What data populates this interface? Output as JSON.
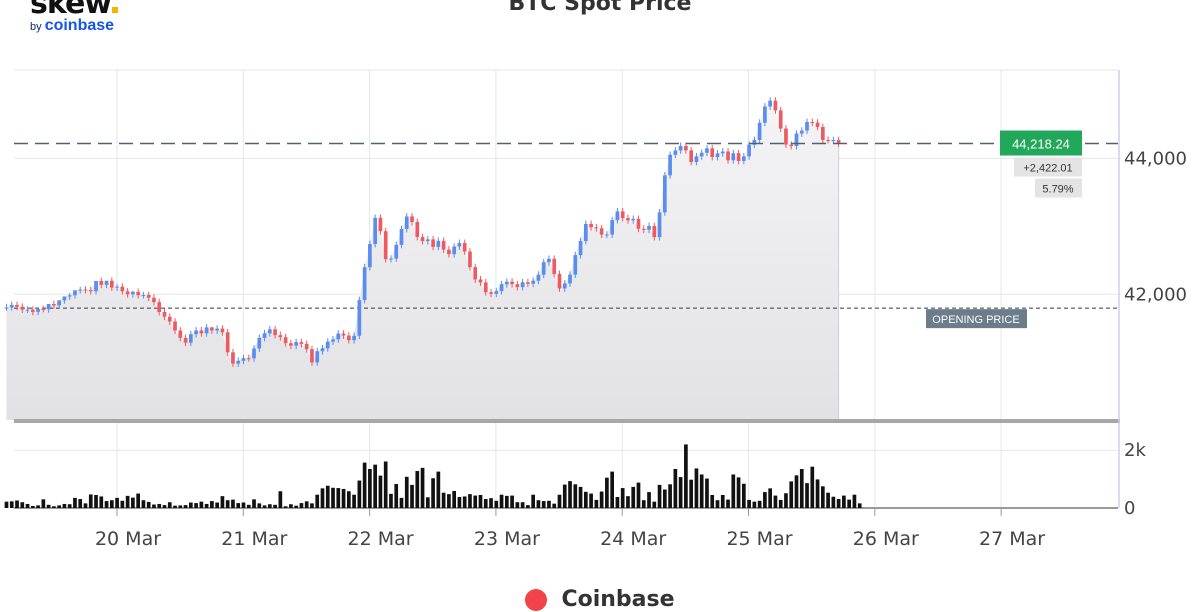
{
  "logo": {
    "word": "skew",
    "sub_prefix": "by",
    "sub_brand": "coinbase"
  },
  "colors": {
    "up": "#5b8def",
    "down": "#ee5a61",
    "last_price_badge": "#22a85a",
    "opening_badge": "#6b7c8a",
    "legend_marker": "#f0434a"
  },
  "chart_data": {
    "type": "candlestick",
    "title": "BTC Spot Price",
    "legend": [
      {
        "name": "Coinbase",
        "color": "#f0434a"
      }
    ],
    "legend_position": "bottom-center",
    "price_axis": {
      "side": "right",
      "ticks": [
        42000,
        44000
      ],
      "tick_labels": [
        "42,000",
        "44,000"
      ],
      "range": [
        40150,
        45300
      ]
    },
    "volume_axis": {
      "side": "right",
      "ticks": [
        0,
        2000
      ],
      "tick_labels": [
        "0",
        "2k"
      ],
      "range": [
        0,
        2700
      ]
    },
    "x_axis": {
      "tick_labels": [
        "20 Mar",
        "21 Mar",
        "22 Mar",
        "23 Mar",
        "24 Mar",
        "25 Mar",
        "26 Mar",
        "27 Mar"
      ],
      "range_days": [
        19.1,
        27.8
      ]
    },
    "grid": true,
    "last_price": {
      "value": 44218.24,
      "label": "44,218.24",
      "change_label": "+2,422.01",
      "change_pct_label": "5.79%"
    },
    "opening_price": {
      "value": 41796,
      "label": "OPENING PRICE"
    },
    "first_candle_time": 19.125,
    "candle_interval_days": 0.0417,
    "opens": [
      41800,
      41806,
      41843,
      41817,
      41774,
      41775,
      41741,
      41784,
      41780,
      41857,
      41836,
      41911,
      41968,
      41985,
      42059,
      42070,
      42063,
      42045,
      42196,
      42139,
      42199,
      42099,
      42112,
      42044,
      42000,
      42036,
      41987,
      41989,
      41949,
      41884,
      41739,
      41670,
      41599,
      41466,
      41359,
      41288,
      41412,
      41468,
      41426,
      41513,
      41468,
      41495,
      41440,
      41146,
      40981,
      41021,
      41060,
      41058,
      41202,
      41358,
      41426,
      41485,
      41399,
      41368,
      41280,
      41245,
      41296,
      41270,
      41192,
      40998,
      41162,
      41205,
      41303,
      41337,
      41422,
      41393,
      41325,
      41390,
      41914,
      42398,
      42739,
      43125,
      42928,
      42516,
      42526,
      42727,
      42960,
      43145,
      43063,
      42843,
      42782,
      42808,
      42698,
      42786,
      42657,
      42591,
      42702,
      42755,
      42629,
      42399,
      42218,
      42174,
      42030,
      42007,
      42046,
      42148,
      42185,
      42149,
      42106,
      42177,
      42155,
      42199,
      42288,
      42472,
      42522,
      42298,
      42086,
      42160,
      42289,
      42576,
      42784,
      43035,
      42986,
      42971,
      42877,
      42879,
      43091,
      43220,
      43121,
      43089,
      43109,
      42964,
      42949,
      43005,
      42841,
      43205,
      43750,
      44052,
      44116,
      44183,
      44118,
      43947,
      44029,
      44082,
      44147,
      44019,
      44073,
      44101,
      43972,
      44076,
      43962,
      44029,
      44201,
      44270,
      44523,
      44763,
      44849,
      44706,
      44438,
      44203,
      44180,
      44365,
      44408,
      44535,
      44527,
      44462,
      44271,
      44269,
      44269
    ],
    "closes": [
      41806,
      41843,
      41817,
      41774,
      41775,
      41741,
      41784,
      41780,
      41857,
      41836,
      41911,
      41968,
      41985,
      42059,
      42070,
      42063,
      42045,
      42196,
      42139,
      42199,
      42099,
      42112,
      42044,
      42000,
      42036,
      41987,
      41989,
      41949,
      41884,
      41739,
      41670,
      41599,
      41466,
      41359,
      41288,
      41412,
      41468,
      41426,
      41513,
      41468,
      41495,
      41440,
      41146,
      40981,
      41021,
      41060,
      41058,
      41202,
      41358,
      41426,
      41485,
      41399,
      41368,
      41280,
      41245,
      41296,
      41270,
      41192,
      40998,
      41162,
      41205,
      41303,
      41337,
      41422,
      41393,
      41325,
      41390,
      41914,
      42398,
      42739,
      43125,
      42928,
      42516,
      42526,
      42727,
      42960,
      43145,
      43063,
      42843,
      42782,
      42808,
      42698,
      42786,
      42657,
      42591,
      42702,
      42755,
      42629,
      42399,
      42218,
      42174,
      42030,
      42007,
      42046,
      42148,
      42185,
      42149,
      42106,
      42177,
      42155,
      42199,
      42288,
      42472,
      42522,
      42298,
      42086,
      42160,
      42289,
      42576,
      42784,
      43035,
      42986,
      42971,
      42877,
      42879,
      43091,
      43220,
      43121,
      43089,
      43109,
      42964,
      42949,
      43005,
      42841,
      43205,
      43750,
      44052,
      44116,
      44183,
      44118,
      43947,
      44029,
      44082,
      44147,
      44019,
      44073,
      44101,
      43972,
      44076,
      43962,
      44029,
      44201,
      44270,
      44523,
      44763,
      44849,
      44706,
      44438,
      44203,
      44180,
      44365,
      44408,
      44535,
      44527,
      44462,
      44271,
      44269,
      44269,
      44218
    ],
    "highs": [
      41860,
      41893,
      41893,
      41867,
      41824,
      41825,
      41791,
      41834,
      41830,
      41907,
      41886,
      41961,
      42018,
      42035,
      42109,
      42120,
      42113,
      42095,
      42246,
      42189,
      42249,
      42149,
      42162,
      42094,
      42050,
      42086,
      42037,
      42039,
      41999,
      41934,
      41789,
      41720,
      41649,
      41516,
      41409,
      41462,
      41518,
      41518,
      41563,
      41518,
      41545,
      41545,
      41490,
      41196,
      41071,
      41110,
      41110,
      41252,
      41408,
      41476,
      41535,
      41535,
      41449,
      41418,
      41330,
      41346,
      41346,
      41320,
      41242,
      41212,
      41255,
      41353,
      41387,
      41472,
      41472,
      41443,
      41440,
      41964,
      42448,
      42789,
      43175,
      43175,
      42978,
      42576,
      42777,
      43010,
      43195,
      43195,
      43113,
      42893,
      42858,
      42858,
      42836,
      42836,
      42707,
      42752,
      42805,
      42805,
      42679,
      42449,
      42268,
      42224,
      42080,
      42096,
      42198,
      42235,
      42235,
      42199,
      42227,
      42227,
      42249,
      42338,
      42522,
      42572,
      42572,
      42348,
      42210,
      42339,
      42626,
      42834,
      43085,
      43085,
      43036,
      43021,
      42929,
      43141,
      43270,
      43270,
      43171,
      43159,
      43159,
      43014,
      43055,
      43055,
      43255,
      43800,
      44102,
      44166,
      44233,
      44233,
      44168,
      44079,
      44132,
      44197,
      44197,
      44123,
      44151,
      44151,
      44126,
      44126,
      44079,
      44251,
      44320,
      44573,
      44813,
      44899,
      44899,
      44756,
      44488,
      44253,
      44415,
      44458,
      44585,
      44585,
      44577,
      44512,
      44321,
      44319,
      44319
    ],
    "lows": [
      41756,
      41756,
      41767,
      41724,
      41725,
      41691,
      41691,
      41734,
      41730,
      41786,
      41786,
      41861,
      41918,
      41935,
      42009,
      42013,
      41995,
      41995,
      42089,
      42089,
      42049,
      42049,
      41994,
      41950,
      41950,
      41937,
      41937,
      41899,
      41834,
      41689,
      41620,
      41549,
      41416,
      41309,
      41238,
      41238,
      41362,
      41376,
      41376,
      41418,
      41418,
      41390,
      41096,
      40931,
      40931,
      40971,
      41008,
      41008,
      41152,
      41308,
      41376,
      41349,
      41318,
      41230,
      41195,
      41195,
      41220,
      41142,
      40948,
      40948,
      41112,
      41155,
      41253,
      41287,
      41343,
      41275,
      41275,
      41340,
      41864,
      42348,
      42689,
      42878,
      42466,
      42466,
      42476,
      42677,
      42910,
      43013,
      42793,
      42732,
      42732,
      42648,
      42648,
      42607,
      42541,
      42541,
      42652,
      42579,
      42349,
      42168,
      42124,
      41980,
      41957,
      41957,
      41996,
      42098,
      42099,
      42056,
      42056,
      42105,
      42105,
      42149,
      42238,
      42422,
      42248,
      42036,
      42036,
      42110,
      42239,
      42526,
      42734,
      42936,
      42921,
      42827,
      42827,
      42829,
      43041,
      43071,
      43039,
      43039,
      42914,
      42899,
      42899,
      42791,
      42791,
      43155,
      43700,
      44002,
      44066,
      44068,
      43897,
      43897,
      43979,
      44032,
      43969,
      43969,
      44023,
      43922,
      43922,
      43912,
      43912,
      43979,
      44151,
      44220,
      44473,
      44713,
      44656,
      44388,
      44153,
      44130,
      44130,
      44315,
      44358,
      44477,
      44412,
      44221,
      44219,
      44219,
      44168
    ],
    "volumes": [
      220,
      230,
      260,
      200,
      140,
      70,
      90,
      300,
      110,
      60,
      90,
      140,
      130,
      350,
      310,
      160,
      470,
      450,
      400,
      240,
      270,
      350,
      250,
      420,
      360,
      500,
      270,
      210,
      120,
      140,
      100,
      200,
      80,
      90,
      100,
      190,
      170,
      220,
      140,
      240,
      190,
      410,
      270,
      290,
      170,
      190,
      110,
      300,
      160,
      90,
      130,
      110,
      580,
      60,
      130,
      80,
      170,
      230,
      160,
      460,
      680,
      770,
      700,
      690,
      660,
      580,
      460,
      950,
      1570,
      1350,
      1500,
      1120,
      1610,
      490,
      830,
      350,
      1080,
      800,
      1280,
      1390,
      370,
      1030,
      1260,
      530,
      480,
      590,
      380,
      400,
      480,
      430,
      450,
      310,
      340,
      250,
      460,
      420,
      430,
      200,
      200,
      100,
      460,
      270,
      240,
      250,
      150,
      460,
      810,
      930,
      820,
      730,
      560,
      500,
      280,
      570,
      1050,
      1260,
      380,
      690,
      410,
      730,
      880,
      270,
      550,
      220,
      800,
      640,
      820,
      1350,
      1070,
      2200,
      980,
      1370,
      1160,
      1020,
      450,
      270,
      450,
      290,
      1160,
      1060,
      840,
      280,
      220,
      250,
      550,
      680,
      430,
      280,
      510,
      920,
      1130,
      1350,
      860,
      1430,
      990,
      750,
      530,
      390,
      310,
      430,
      290,
      460,
      160
    ]
  }
}
